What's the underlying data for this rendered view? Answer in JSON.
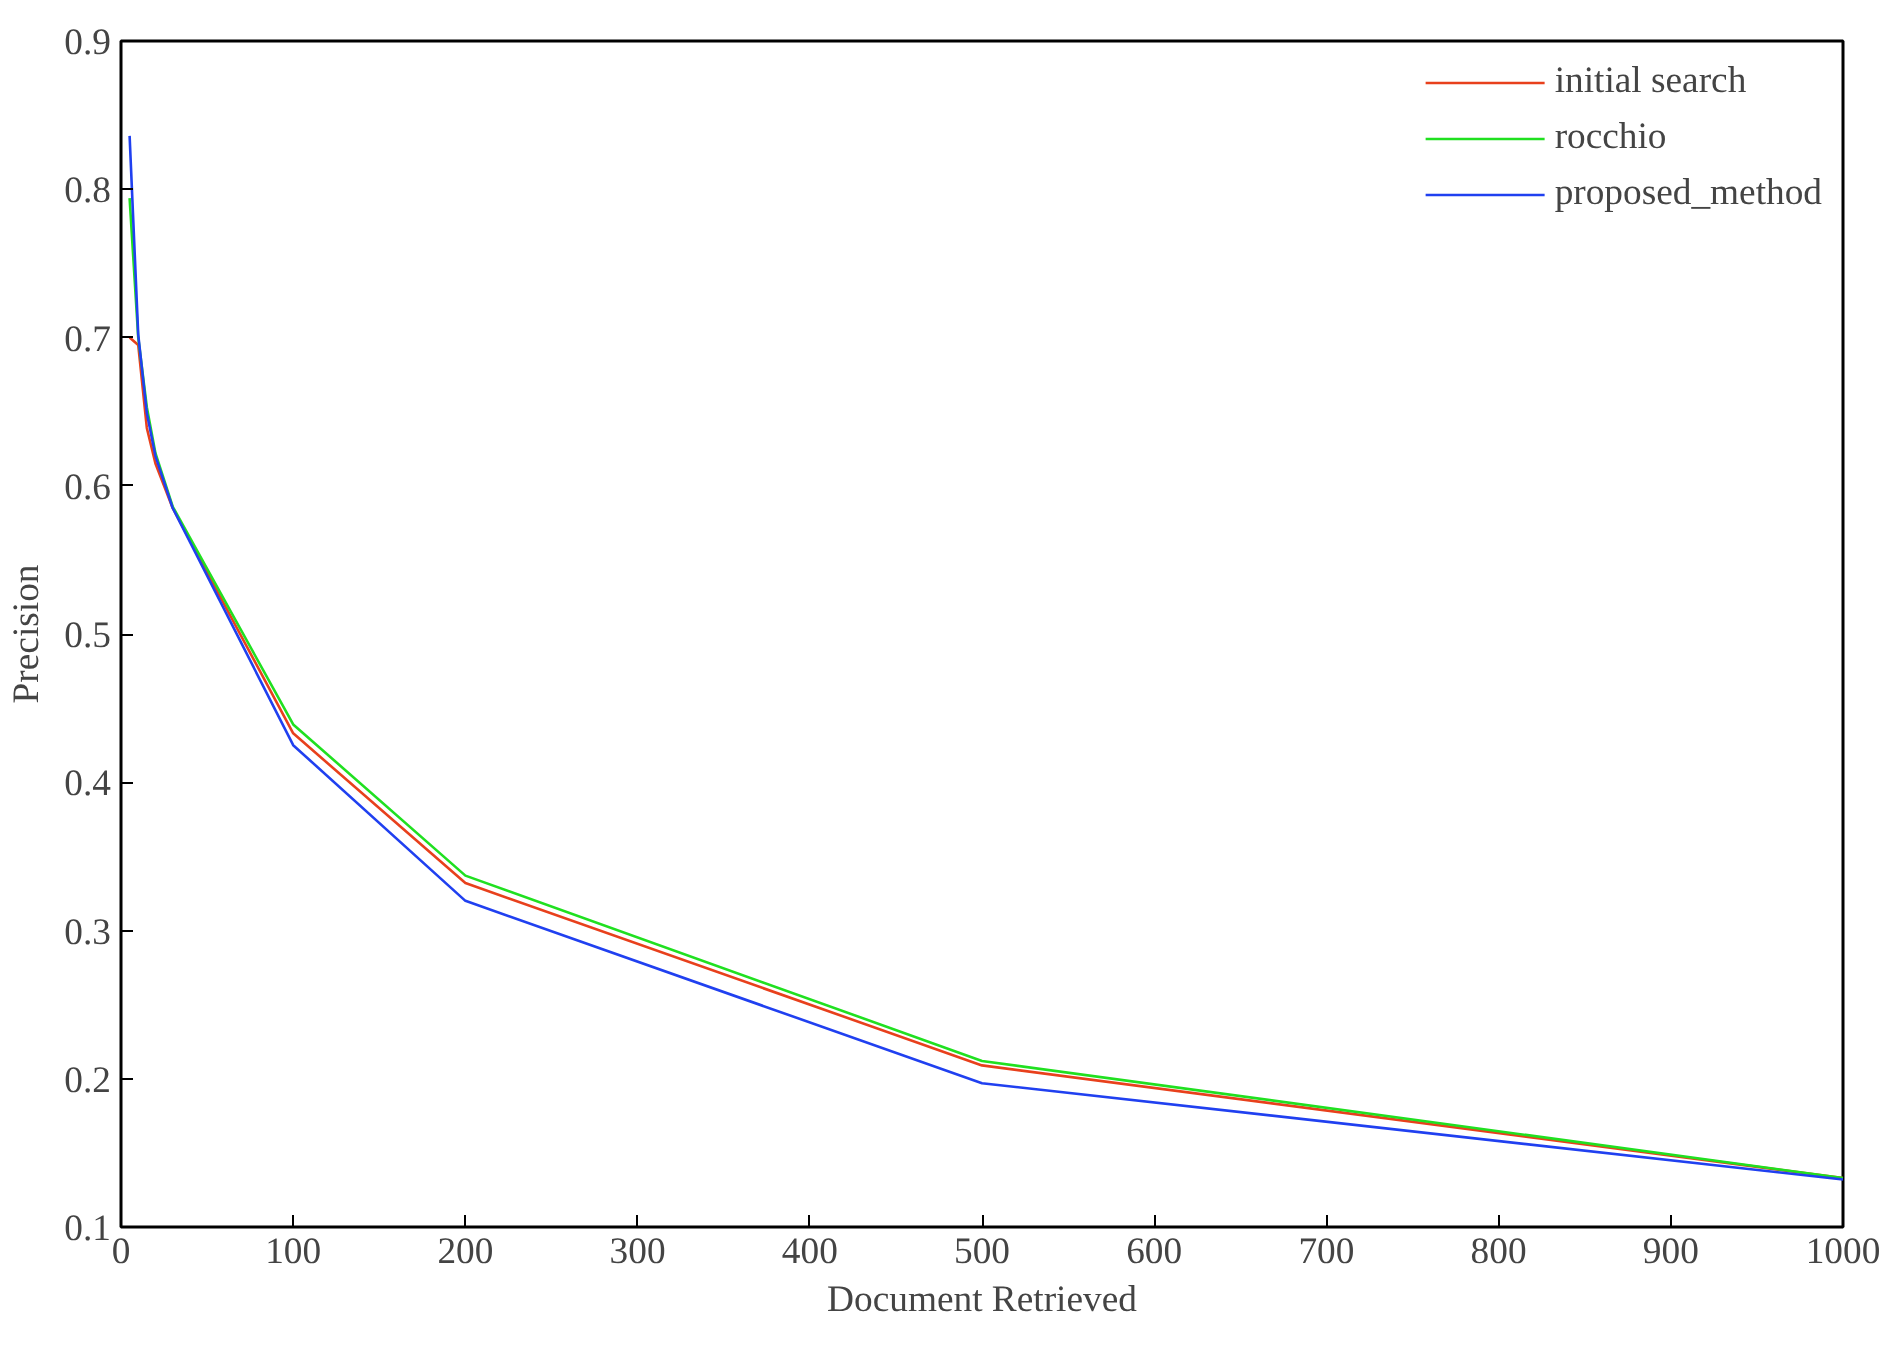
{
  "chart_data": {
    "type": "line",
    "xlabel": "Document Retrieved",
    "ylabel": "Precision",
    "x": [
      5,
      10,
      15,
      20,
      30,
      100,
      200,
      500,
      1000
    ],
    "series": [
      {
        "name": "initial search",
        "color": "#e8401c",
        "values": [
          0.7,
          0.695,
          0.639,
          0.615,
          0.585,
          0.433,
          0.332,
          0.209,
          0.133
        ]
      },
      {
        "name": "rocchio",
        "color": "#20e020",
        "values": [
          0.794,
          0.7,
          0.653,
          0.622,
          0.586,
          0.439,
          0.337,
          0.212,
          0.133
        ]
      },
      {
        "name": "proposed_method",
        "color": "#2040f0",
        "values": [
          0.836,
          0.702,
          0.649,
          0.62,
          0.585,
          0.425,
          0.32,
          0.197,
          0.132
        ]
      }
    ],
    "xlim": [
      0,
      1000
    ],
    "ylim": [
      0.1,
      0.9
    ],
    "xticks": [
      0,
      100,
      200,
      300,
      400,
      500,
      600,
      700,
      800,
      900,
      1000
    ],
    "yticks": [
      0.1,
      0.2,
      0.3,
      0.4,
      0.5,
      0.6,
      0.7,
      0.8,
      0.9
    ],
    "grid": false,
    "legend": "top right",
    "line_style": "solid",
    "marker": "none"
  }
}
